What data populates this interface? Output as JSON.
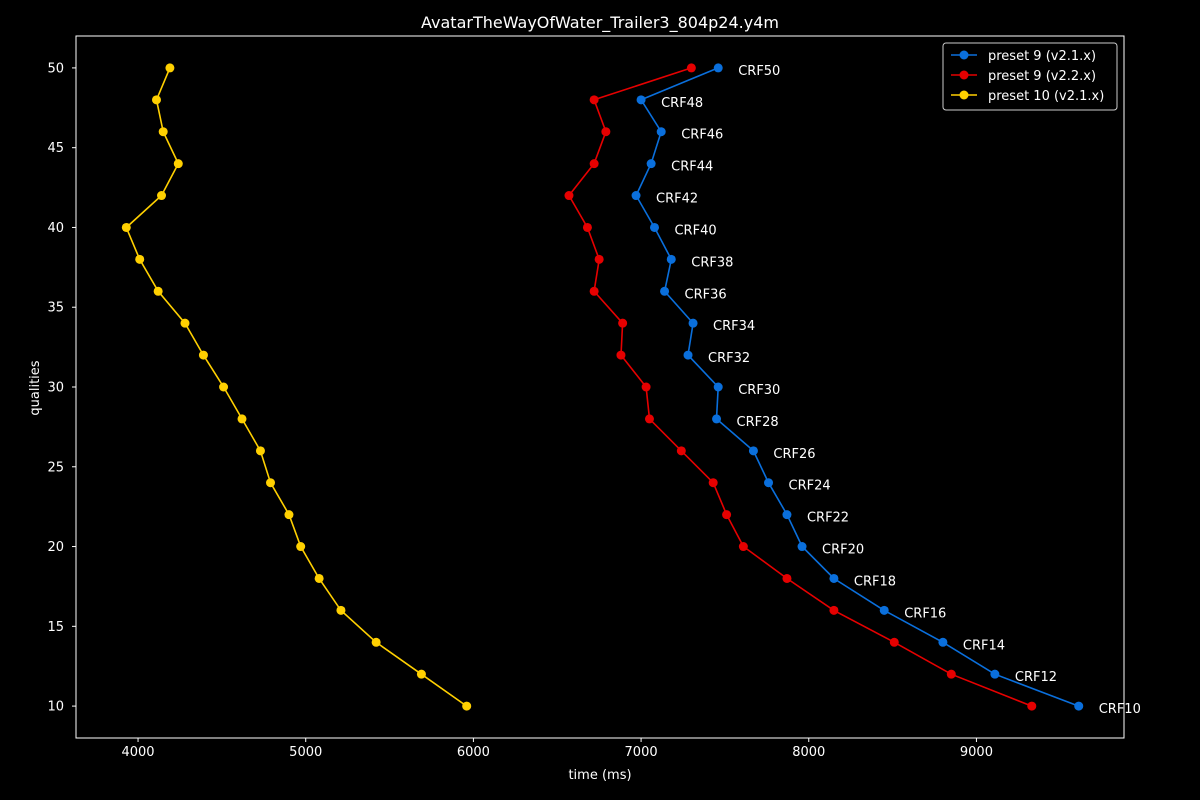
{
  "chart_data": {
    "type": "line",
    "title": "AvatarTheWayOfWater_Trailer3_804p24.y4m",
    "xlabel": "time (ms)",
    "ylabel": "qualities",
    "xlim": [
      3630,
      9880
    ],
    "ylim": [
      8,
      52
    ],
    "xticks": [
      4000,
      5000,
      6000,
      7000,
      8000,
      9000
    ],
    "yticks": [
      10,
      15,
      20,
      25,
      30,
      35,
      40,
      45,
      50
    ],
    "grid": false,
    "legend_position": "top-right",
    "series": [
      {
        "name": "preset 9 (v2.1.x)",
        "color": "#0a6fdc",
        "y": [
          50,
          48,
          46,
          44,
          42,
          40,
          38,
          36,
          34,
          32,
          30,
          28,
          26,
          24,
          22,
          20,
          18,
          16,
          14,
          12,
          10
        ],
        "x": [
          7460,
          7000,
          7120,
          7060,
          6970,
          7080,
          7180,
          7140,
          7310,
          7280,
          7460,
          7450,
          7670,
          7760,
          7870,
          7960,
          8150,
          8450,
          8800,
          9110,
          9610
        ],
        "point_labels": [
          "CRF50",
          "CRF48",
          "CRF46",
          "CRF44",
          "CRF42",
          "CRF40",
          "CRF38",
          "CRF36",
          "CRF34",
          "CRF32",
          "CRF30",
          "CRF28",
          "CRF26",
          "CRF24",
          "CRF22",
          "CRF20",
          "CRF18",
          "CRF16",
          "CRF14",
          "CRF12",
          "CRF10"
        ]
      },
      {
        "name": "preset 9 (v2.2.x)",
        "color": "#e60000",
        "y": [
          50,
          48,
          46,
          44,
          42,
          40,
          38,
          36,
          34,
          32,
          30,
          28,
          26,
          24,
          22,
          20,
          18,
          16,
          14,
          12,
          10
        ],
        "x": [
          7300,
          6720,
          6790,
          6720,
          6570,
          6680,
          6750,
          6720,
          6890,
          6880,
          7030,
          7050,
          7240,
          7430,
          7510,
          7610,
          7870,
          8150,
          8510,
          8850,
          9330
        ]
      },
      {
        "name": "preset 10 (v2.1.x)",
        "color": "#ffd000",
        "y": [
          50,
          48,
          46,
          44,
          42,
          40,
          38,
          36,
          34,
          32,
          30,
          28,
          26,
          24,
          22,
          20,
          18,
          16,
          14,
          12,
          10
        ],
        "x": [
          4190,
          4110,
          4150,
          4240,
          4140,
          3930,
          4010,
          4120,
          4280,
          4390,
          4510,
          4620,
          4730,
          4790,
          4900,
          4970,
          5080,
          5210,
          5420,
          5690,
          5960
        ]
      }
    ]
  }
}
